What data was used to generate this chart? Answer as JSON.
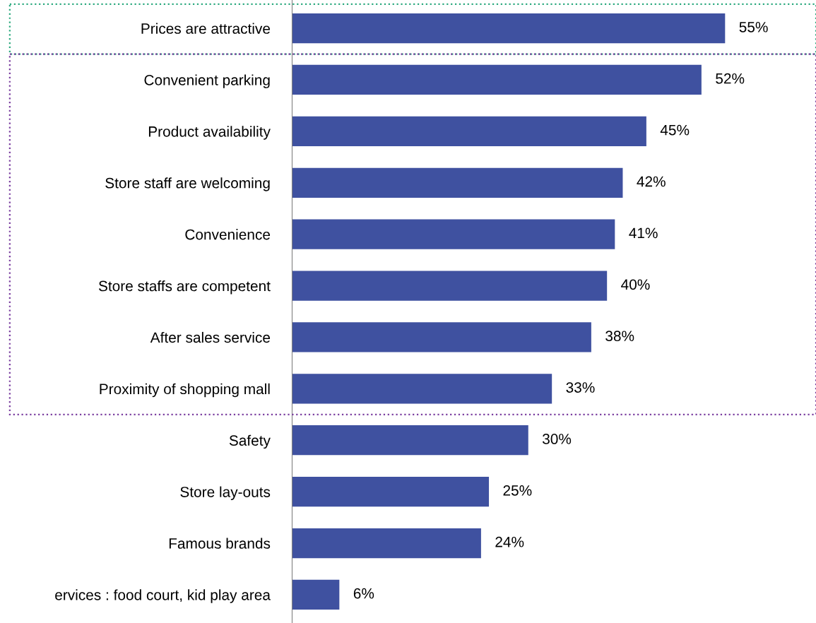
{
  "chart_data": {
    "type": "bar",
    "orientation": "horizontal",
    "categories": [
      "Prices are attractive",
      "Convenient parking",
      "Product availability",
      "Store staff are welcoming",
      "Convenience",
      "Store staffs are competent",
      "After sales service",
      "Proximity of shopping mall",
      "Safety",
      "Store lay-outs",
      "Famous brands",
      "ervices : food court, kid play area"
    ],
    "values": [
      55,
      52,
      45,
      42,
      41,
      40,
      38,
      33,
      30,
      25,
      24,
      6
    ],
    "value_labels": [
      "55%",
      "52%",
      "45%",
      "42%",
      "41%",
      "40%",
      "38%",
      "33%",
      "30%",
      "25%",
      "24%",
      "6%"
    ],
    "color": "#3f51a0",
    "grid": false,
    "legend": false
  }
}
